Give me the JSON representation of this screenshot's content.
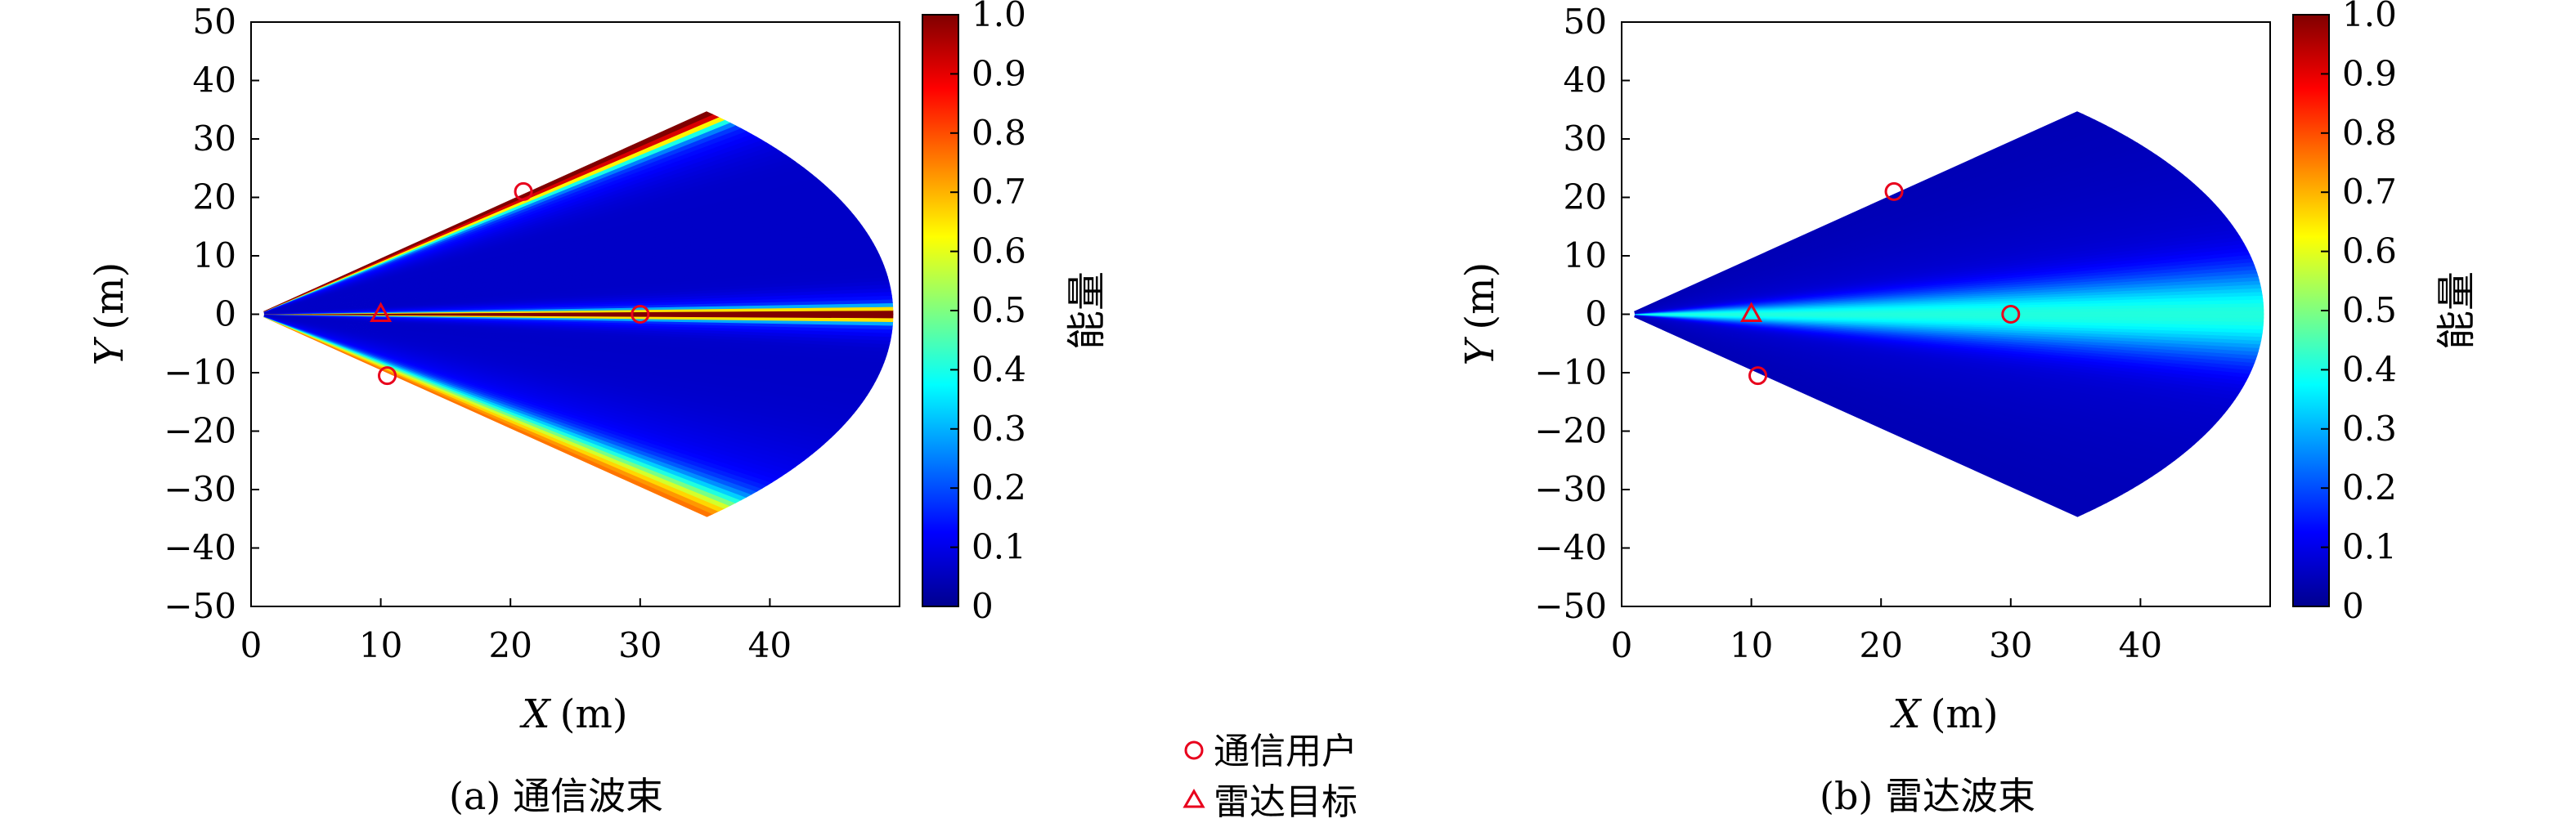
{
  "chart_data": [
    {
      "type": "heatmap",
      "caption": "(a) 通信波束",
      "xlabel_var": "X",
      "xlabel_unit": "(m)",
      "ylabel_var": "Y",
      "ylabel_unit": "(m)",
      "xlim": [
        0,
        50
      ],
      "ylim": [
        -50,
        50
      ],
      "xticks": [
        "0",
        "10",
        "20",
        "30",
        "40"
      ],
      "yticks": [
        "50",
        "40",
        "30",
        "20",
        "10",
        "0",
        "−10",
        "−20",
        "−30",
        "−40",
        "−50"
      ],
      "colorbar_label": "能量",
      "colorbar_ticks": [
        "1.0",
        "0.9",
        "0.8",
        "0.7",
        "0.6",
        "0.5",
        "0.4",
        "0.3",
        "0.2",
        "0.1",
        "0"
      ],
      "region_radius": 49,
      "beams": [
        {
          "angle_deg": 0,
          "peak": 1.0,
          "width_deg": 1.3
        },
        {
          "angle_deg": 45,
          "peak": 0.95,
          "width_deg": 2.2
        },
        {
          "angle_deg": -45,
          "peak": 0.62,
          "width_deg": 4.5
        }
      ],
      "users": [
        {
          "x": 21,
          "y": 21
        },
        {
          "x": 30,
          "y": 0
        },
        {
          "x": 10.5,
          "y": -10.5
        }
      ],
      "targets": [
        {
          "x": 10,
          "y": 0
        }
      ]
    },
    {
      "type": "heatmap",
      "caption": "(b) 雷达波束",
      "xlabel_var": "X",
      "xlabel_unit": "(m)",
      "ylabel_var": "Y",
      "ylabel_unit": "(m)",
      "xlim": [
        0,
        50
      ],
      "ylim": [
        -50,
        50
      ],
      "xticks": [
        "0",
        "10",
        "20",
        "30",
        "40"
      ],
      "yticks": [
        "50",
        "40",
        "30",
        "20",
        "10",
        "0",
        "−10",
        "−20",
        "−30",
        "−40",
        "−50"
      ],
      "colorbar_label": "能量",
      "colorbar_ticks": [
        "1.0",
        "0.9",
        "0.8",
        "0.7",
        "0.6",
        "0.5",
        "0.4",
        "0.3",
        "0.2",
        "0.1",
        "0"
      ],
      "region_radius": 49,
      "beams": [
        {
          "angle_deg": 0,
          "peak": 0.32,
          "width_deg": 9
        }
      ],
      "users": [
        {
          "x": 21,
          "y": 21
        },
        {
          "x": 30,
          "y": 0
        },
        {
          "x": 10.5,
          "y": -10.5
        }
      ],
      "targets": [
        {
          "x": 10,
          "y": 0
        }
      ]
    }
  ],
  "legend": {
    "user_label": "通信用户",
    "target_label": "雷达目标"
  },
  "colors": {
    "marker": "#e8001c"
  }
}
